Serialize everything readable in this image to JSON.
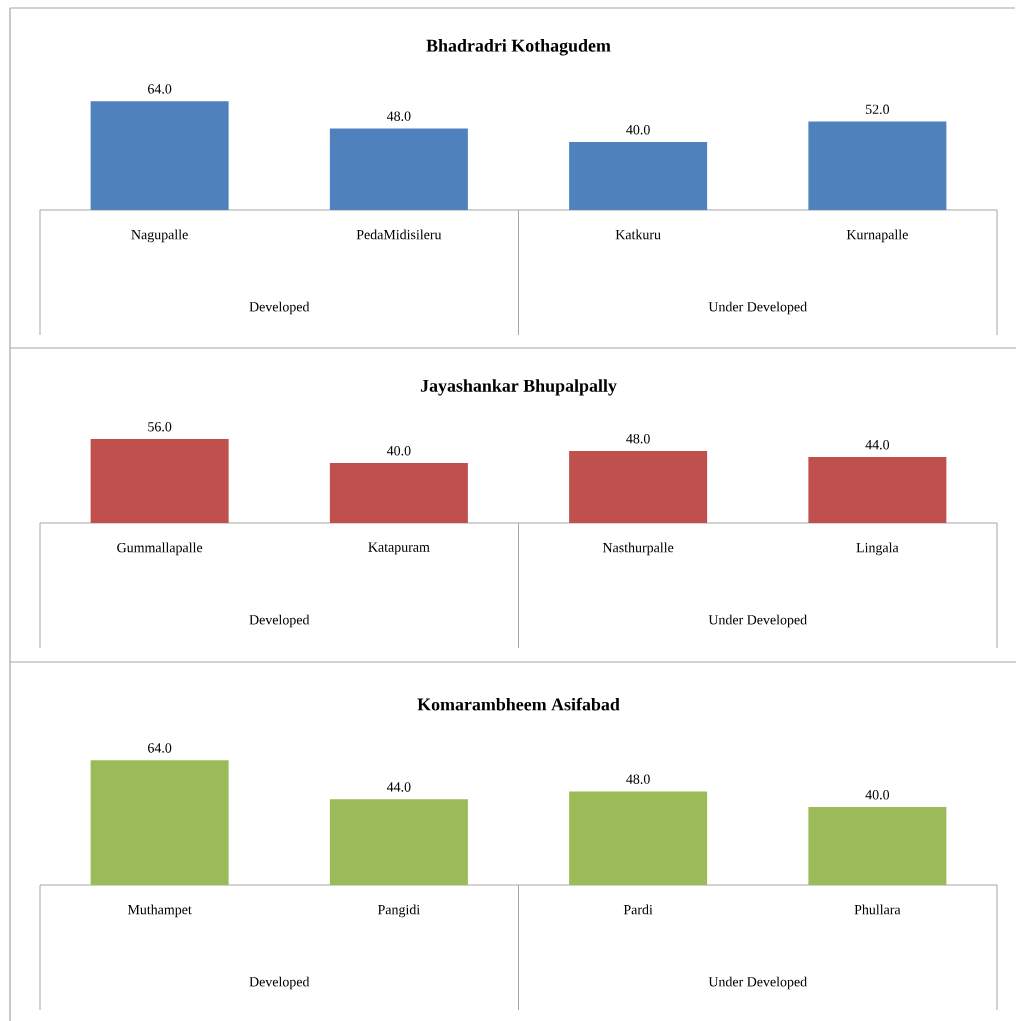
{
  "chart_data": [
    {
      "type": "bar",
      "title": "Bhadradri Kothagudem",
      "categories": [
        "Nagupalle",
        "PedaMidisileru",
        "Katkuru",
        "Kurnapalle"
      ],
      "values": [
        64,
        48,
        40,
        52
      ],
      "value_labels": [
        "64.0",
        "48.0",
        "40.0",
        "52.0"
      ],
      "color": "#4f81bd",
      "tick_labels": "x",
      "annotations": [
        "Developed",
        "Under Developed"
      ]
    },
    {
      "type": "bar",
      "title": "Jayashankar Bhupalpally",
      "categories": [
        "Gummallapalle",
        "Katapuram",
        "Nasthurpalle",
        "Lingala"
      ],
      "values": [
        56,
        40,
        48,
        44
      ],
      "value_labels": [
        "56.0",
        "40.0",
        "48.0",
        "44.0"
      ],
      "color": "#c0504d",
      "tick_labels": "x",
      "annotations": [
        "Developed",
        "Under Developed"
      ]
    },
    {
      "type": "bar",
      "title": "Komarambheem Asifabad",
      "categories": [
        "Muthampet",
        "Pangidi",
        "Pardi",
        "Phullara"
      ],
      "values": [
        64,
        44,
        48,
        40
      ],
      "value_labels": [
        "64.0",
        "44.0",
        "48.0",
        "40.0"
      ],
      "color": "#9bbb59",
      "tick_labels": "x",
      "annotations": [
        "Developed",
        "Under Developed"
      ]
    }
  ]
}
